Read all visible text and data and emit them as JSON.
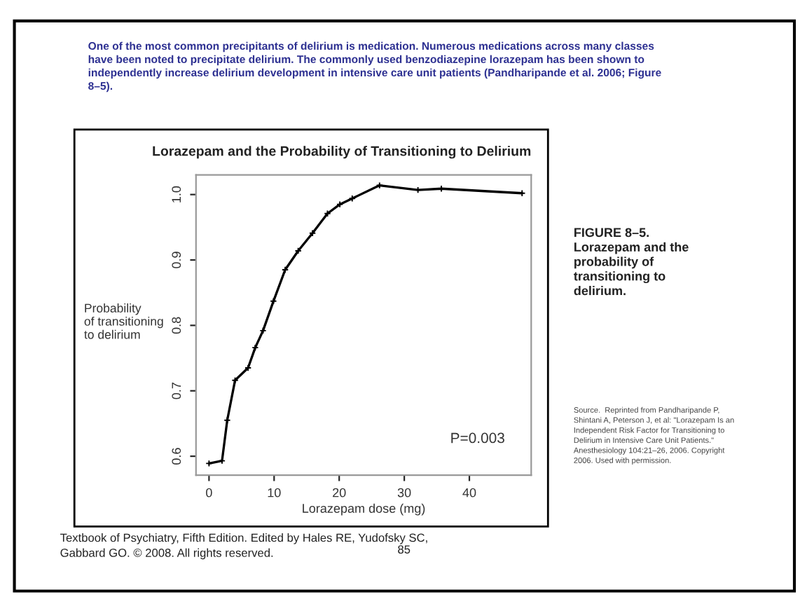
{
  "chart_data": {
    "type": "line",
    "title": "Lorazepam and the Probability of Transitioning to Delirium",
    "xlabel": "Lorazepam dose (mg)",
    "ylabel": "Probability\nof transitioning\nto delirium",
    "x": [
      0,
      2,
      2.8,
      4,
      6,
      7.1,
      8.3,
      9.9,
      11.7,
      13.7,
      15.9,
      18.2,
      20.1,
      22,
      26.2,
      32.1,
      35.7,
      48.1
    ],
    "series": [
      {
        "color": "#000000",
        "values": [
          0.589,
          0.593,
          0.655,
          0.716,
          0.735,
          0.766,
          0.792,
          0.837,
          0.885,
          0.914,
          0.941,
          0.971,
          0.985,
          0.994,
          1.014,
          1.007,
          1.009,
          1.002
        ]
      }
    ],
    "xlim": [
      -2,
      49.5
    ],
    "xticks": [
      0,
      10,
      20,
      30,
      40
    ],
    "ylim": [
      0.571,
      1.03
    ],
    "yticks": [
      {
        "value": 0.6,
        "label": "0.6"
      },
      {
        "value": 0.7,
        "label": "0.7"
      },
      {
        "value": 0.8,
        "label": "0.8"
      },
      {
        "value": 0.9,
        "label": "0.9"
      },
      {
        "value": 1.0,
        "label": "1.0"
      }
    ],
    "grid": false,
    "marker": "cross",
    "line_style": "solid",
    "annotations": [
      "One of the most common precipitants of delirium is medication. Numerous medications across many classes\nhave been noted to precipitate delirium. The commonly used benzodiazepine lorazepam has been shown to\nindependently increase delirium development in intensive care unit patients (Pandharipande et al. 2006; Figure\n8–5).",
      "FIGURE 8–5.\nLorazepam and the\nprobability of\ntransitioning to\ndelirium.",
      "Source.  Reprinted from Pandharipande P,\nShintani A, Peterson J, et al: \"Lorazepam Is an\nIndependent Risk Factor for Transitioning to\nDelirium in Intensive Care Unit Patients.\"\nAnesthesiology 104:21–26, 2006. Copyright\n2006. Used with permission.",
      "Textbook of Psychiatry, Fifth Edition. Edited by Hales RE, Yudofsky SC,\nGabbard GO. © 2008. All rights reserved.",
      "85",
      "P=0.003"
    ]
  }
}
